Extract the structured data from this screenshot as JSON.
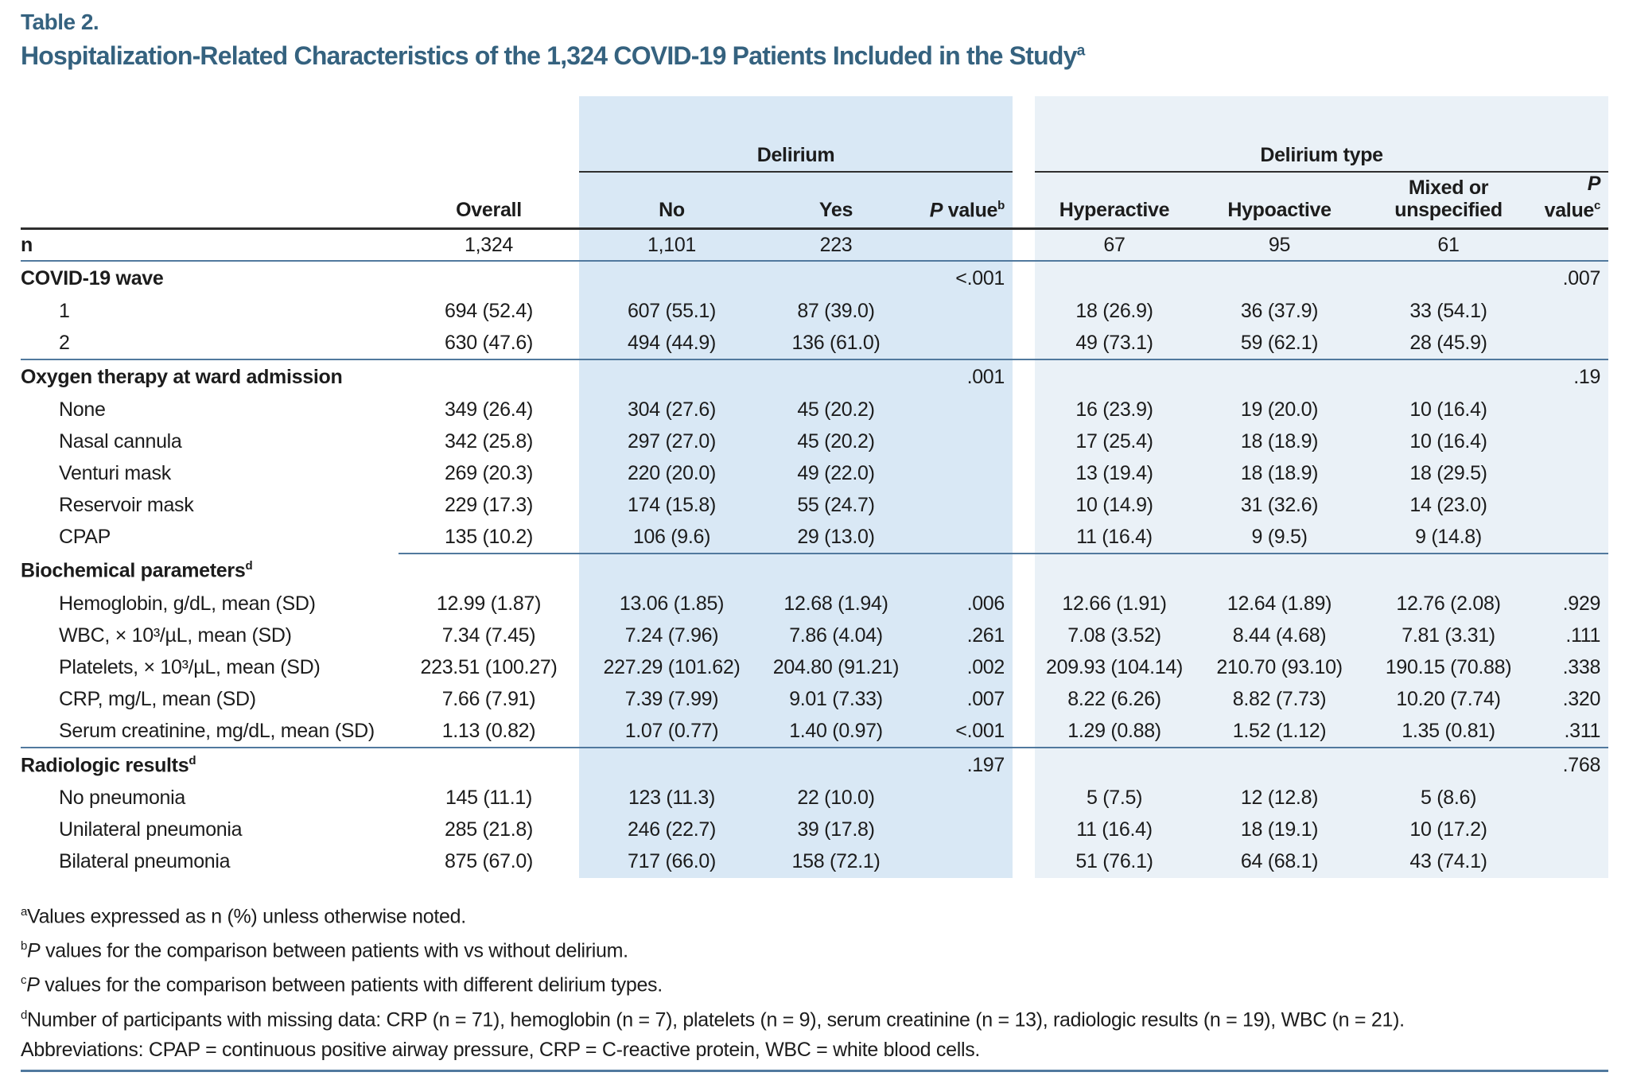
{
  "colors": {
    "accent": "#35627f",
    "delirium_shade": "#d9e8f5",
    "delirium_type_shade": "#eaf1f7",
    "dark_rule": "#2f2f2f",
    "steel_rule": "#51799e",
    "text": "#1c1c1c"
  },
  "page": {
    "label": "Table 2.",
    "title": "Hospitalization-Related Characteristics of the 1,324 COVID-19 Patients Included in the Study",
    "title_sup": "a"
  },
  "columns": {
    "group_delirium": "Delirium",
    "group_delirium_type": "Delirium type",
    "overall": "Overall",
    "no": "No",
    "yes": "Yes",
    "p_italic": "P",
    "value_word": "value",
    "p_value_b_sup": "b",
    "p_value_c_sup": "c",
    "hyperactive": "Hyperactive",
    "hypoactive": "Hypoactive",
    "mixed_line1": "Mixed or",
    "mixed_line2": "unspecified"
  },
  "rows": [
    {
      "type": "data",
      "label": "n",
      "bold": true,
      "indent": false,
      "rule": "full",
      "cells": [
        "1,324",
        "1,101",
        "223",
        "",
        "67",
        "95",
        "61",
        ""
      ]
    },
    {
      "type": "section",
      "label": "COVID-19 wave",
      "sup": "",
      "cells": [
        "",
        "",
        "",
        "<.001",
        "",
        "",
        "",
        ".007"
      ]
    },
    {
      "type": "data",
      "label": "1",
      "indent": true,
      "cells": [
        "694 (52.4)",
        "607 (55.1)",
        "87 (39.0)",
        "",
        "18 (26.9)",
        "36 (37.9)",
        "33 (54.1)",
        ""
      ]
    },
    {
      "type": "data",
      "label": "2",
      "indent": true,
      "rule": "full",
      "cells": [
        "630 (47.6)",
        "494 (44.9)",
        "136 (61.0)",
        "",
        "49 (73.1)",
        "59 (62.1)",
        "28 (45.9)",
        ""
      ]
    },
    {
      "type": "section",
      "label": "Oxygen therapy at ward admission",
      "sup": "",
      "cells": [
        "",
        "",
        "",
        ".001",
        "",
        "",
        "",
        ".19"
      ]
    },
    {
      "type": "data",
      "label": "None",
      "indent": true,
      "cells": [
        "349 (26.4)",
        "304 (27.6)",
        "45 (20.2)",
        "",
        "16 (23.9)",
        "19 (20.0)",
        "10 (16.4)",
        ""
      ]
    },
    {
      "type": "data",
      "label": "Nasal cannula",
      "indent": true,
      "cells": [
        "342 (25.8)",
        "297 (27.0)",
        "45 (20.2)",
        "",
        "17 (25.4)",
        "18 (18.9)",
        "10 (16.4)",
        ""
      ]
    },
    {
      "type": "data",
      "label": "Venturi mask",
      "indent": true,
      "cells": [
        "269 (20.3)",
        "220 (20.0)",
        "49 (22.0)",
        "",
        "13 (19.4)",
        "18 (18.9)",
        "18 (29.5)",
        ""
      ]
    },
    {
      "type": "data",
      "label": "Reservoir mask",
      "indent": true,
      "cells": [
        "229 (17.3)",
        "174 (15.8)",
        "55 (24.7)",
        "",
        "10 (14.9)",
        "31 (32.6)",
        "14 (23.0)",
        ""
      ]
    },
    {
      "type": "data",
      "label": "CPAP",
      "indent": true,
      "rule": "cols",
      "cells": [
        "135 (10.2)",
        "106 (9.6)",
        "29 (13.0)",
        "",
        "11 (16.4)",
        "9 (9.5)",
        "9 (14.8)",
        ""
      ]
    },
    {
      "type": "section",
      "label": "Biochemical parameters",
      "sup": "d",
      "cells": [
        "",
        "",
        "",
        "",
        "",
        "",
        "",
        ""
      ]
    },
    {
      "type": "data",
      "label": "Hemoglobin, g/dL, mean (SD)",
      "indent": true,
      "cells": [
        "12.99 (1.87)",
        "13.06 (1.85)",
        "12.68 (1.94)",
        ".006",
        "12.66 (1.91)",
        "12.64 (1.89)",
        "12.76 (2.08)",
        ".929"
      ]
    },
    {
      "type": "data",
      "label": "WBC, × 10³/µL, mean (SD)",
      "indent": true,
      "cells": [
        "7.34 (7.45)",
        "7.24 (7.96)",
        "7.86 (4.04)",
        ".261",
        "7.08 (3.52)",
        "8.44 (4.68)",
        "7.81 (3.31)",
        ".111"
      ]
    },
    {
      "type": "data",
      "label": "Platelets, × 10³/µL, mean (SD)",
      "indent": true,
      "cells": [
        "223.51 (100.27)",
        "227.29 (101.62)",
        "204.80 (91.21)",
        ".002",
        "209.93 (104.14)",
        "210.70 (93.10)",
        "190.15 (70.88)",
        ".338"
      ]
    },
    {
      "type": "data",
      "label": "CRP, mg/L, mean (SD)",
      "indent": true,
      "cells": [
        "7.66 (7.91)",
        "7.39 (7.99)",
        "9.01 (7.33)",
        ".007",
        "8.22 (6.26)",
        "8.82 (7.73)",
        "10.20 (7.74)",
        ".320"
      ]
    },
    {
      "type": "data",
      "label": "Serum creatinine, mg/dL, mean (SD)",
      "indent": true,
      "rule": "full",
      "cells": [
        "1.13 (0.82)",
        "1.07 (0.77)",
        "1.40 (0.97)",
        "<.001",
        "1.29 (0.88)",
        "1.52 (1.12)",
        "1.35 (0.81)",
        ".311"
      ]
    },
    {
      "type": "section",
      "label": "Radiologic results",
      "sup": "d",
      "cells": [
        "",
        "",
        "",
        ".197",
        "",
        "",
        "",
        ".768"
      ]
    },
    {
      "type": "data",
      "label": "No pneumonia",
      "indent": true,
      "cells": [
        "145 (11.1)",
        "123 (11.3)",
        "22 (10.0)",
        "",
        "5 (7.5)",
        "12 (12.8)",
        "5 (8.6)",
        ""
      ]
    },
    {
      "type": "data",
      "label": "Unilateral pneumonia",
      "indent": true,
      "cells": [
        "285 (21.8)",
        "246 (22.7)",
        "39 (17.8)",
        "",
        "11 (16.4)",
        "18 (19.1)",
        "10 (17.2)",
        ""
      ]
    },
    {
      "type": "data",
      "label": "Bilateral pneumonia",
      "indent": true,
      "cells": [
        "875 (67.0)",
        "717 (66.0)",
        "158 (72.1)",
        "",
        "51 (76.1)",
        "64 (68.1)",
        "43 (74.1)",
        ""
      ]
    }
  ],
  "footnotes": [
    {
      "sup": "a",
      "italic_prefix": "",
      "text": "Values expressed as n (%) unless otherwise noted."
    },
    {
      "sup": "b",
      "italic_prefix": "P",
      "text": " values for the comparison between patients with vs without delirium."
    },
    {
      "sup": "c",
      "italic_prefix": "P",
      "text": " values for the comparison between patients with different delirium types."
    },
    {
      "sup": "d",
      "italic_prefix": "",
      "text": "Number of participants with missing data: CRP (n = 71), hemoglobin (n = 7), platelets (n = 9), serum creatinine (n = 13), radiologic results (n = 19), WBC (n = 21)."
    },
    {
      "sup": "",
      "italic_prefix": "",
      "text": "Abbreviations: CPAP = continuous positive airway pressure, CRP = C-reactive protein, WBC = white blood cells."
    }
  ]
}
